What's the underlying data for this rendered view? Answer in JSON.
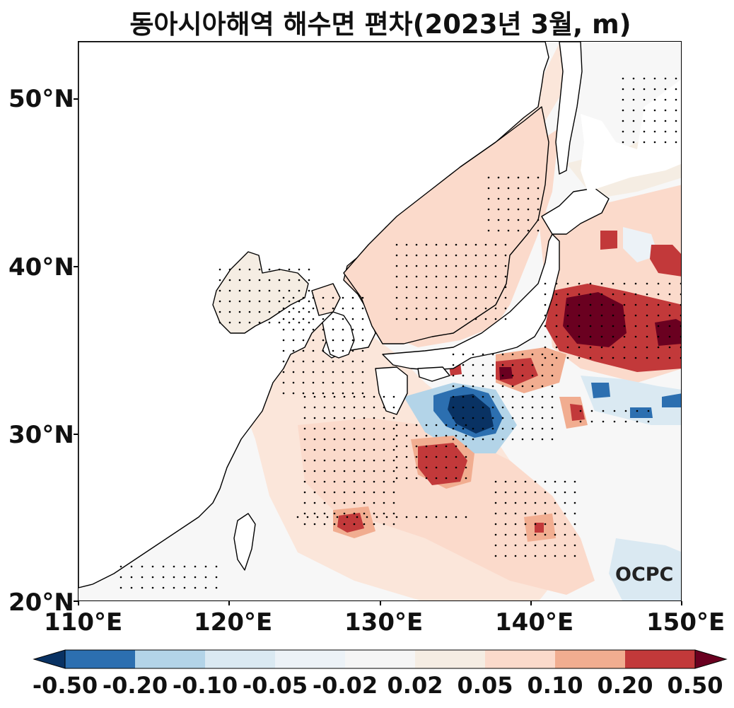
{
  "title": "동아시아해역 해수면 편차(2023년 3월, m)",
  "logo_text": "OCPC",
  "axes": {
    "y_ticks": [
      "50°N",
      "40°N",
      "30°N",
      "20°N"
    ],
    "x_ticks": [
      "110°E",
      "120°E",
      "130°E",
      "140°E",
      "150°E"
    ],
    "lon_range": [
      110,
      150
    ],
    "lat_range": [
      20,
      53.5
    ]
  },
  "colorbar": {
    "labels": [
      "-0.50",
      "-0.20",
      "-0.10",
      "-0.05",
      "-0.02",
      "0.02",
      "0.05",
      "0.10",
      "0.20",
      "0.50"
    ],
    "colors": [
      "#2c6fb0",
      "#b3d4e8",
      "#dae9f2",
      "#ecf2f7",
      "#f5f5f5",
      "#f5ede3",
      "#fbdacb",
      "#f1ad90",
      "#c2393a"
    ],
    "under_color": "#093263",
    "over_color": "#6a0020"
  }
}
